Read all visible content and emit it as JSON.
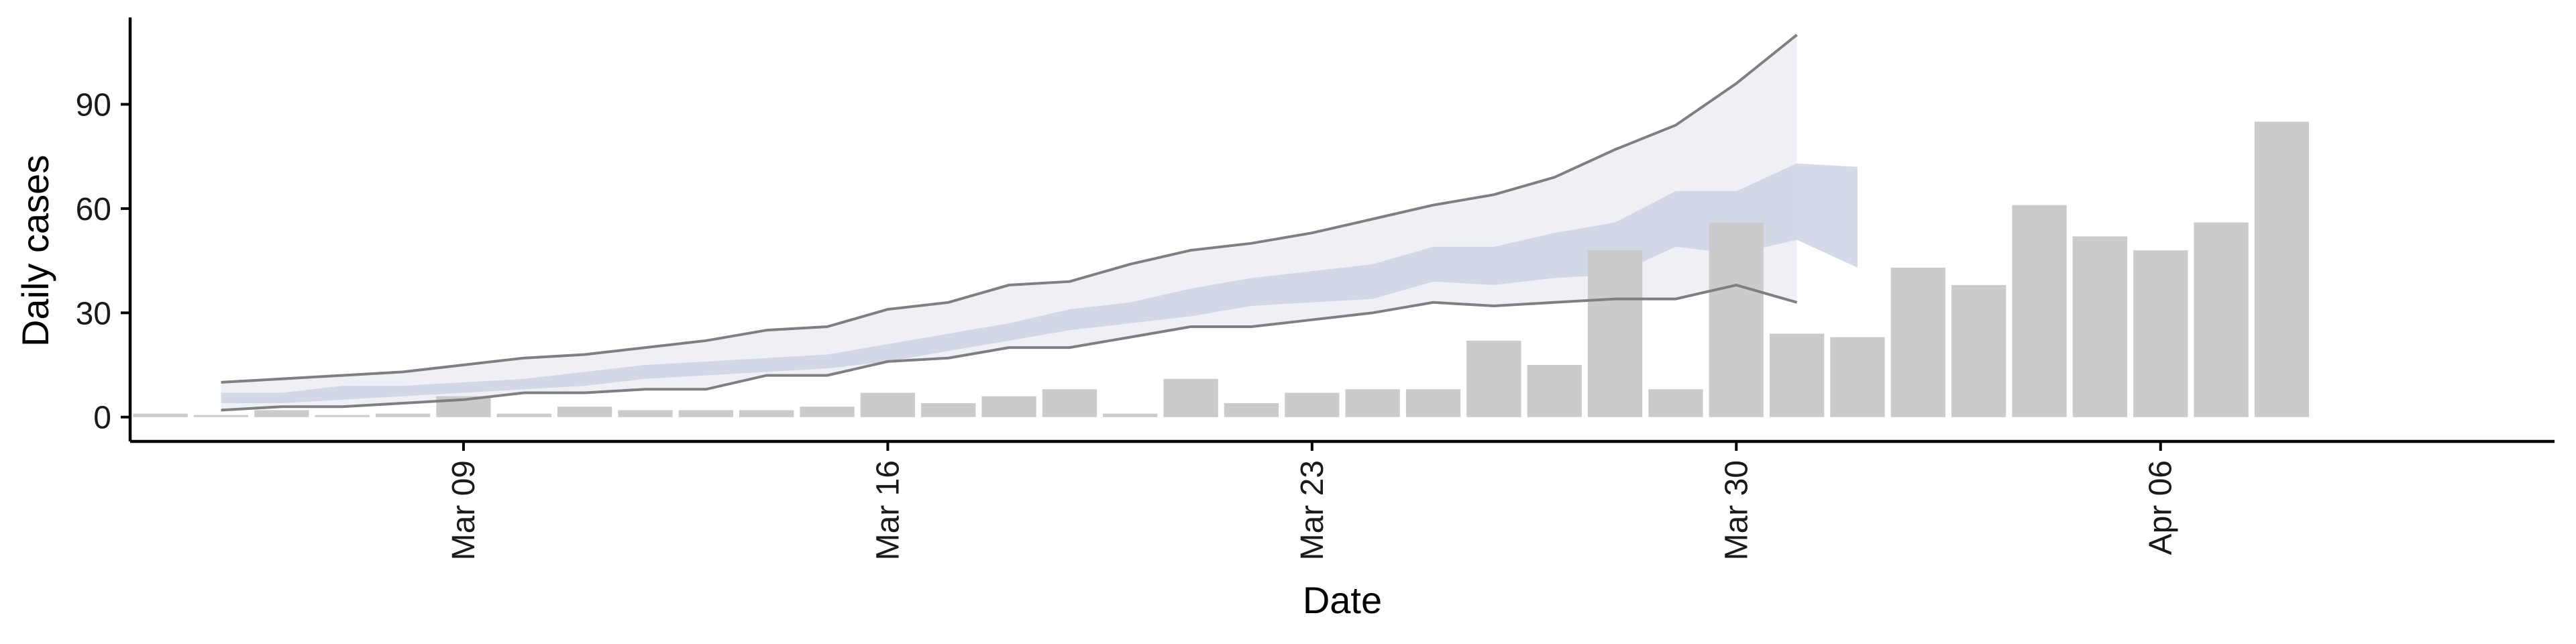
{
  "chart_data": {
    "type": "bar",
    "xlabel": "Date",
    "ylabel": "Daily cases",
    "ylim": [
      -7,
      115
    ],
    "y_ticks": [
      0,
      30,
      60,
      90
    ],
    "x_ticks": [
      {
        "label": "Mar 09",
        "date": "2020-03-09"
      },
      {
        "label": "Mar 16",
        "date": "2020-03-16"
      },
      {
        "label": "Mar 23",
        "date": "2020-03-23"
      },
      {
        "label": "Mar 30",
        "date": "2020-03-30"
      },
      {
        "label": "Apr 06",
        "date": "2020-04-06"
      }
    ],
    "xlim": [
      "2020-03-03T12:00",
      "2020-04-12T12:00"
    ],
    "grid": false,
    "legend": "none",
    "colors": {
      "bars": "#cbcbcb",
      "band_outer": "#eef0f5",
      "band_inner": "#cdd3e3",
      "line": "#7f7f7f"
    },
    "bars": {
      "dates": [
        "2020-03-04",
        "2020-03-05",
        "2020-03-06",
        "2020-03-07",
        "2020-03-08",
        "2020-03-09",
        "2020-03-10",
        "2020-03-11",
        "2020-03-12",
        "2020-03-13",
        "2020-03-14",
        "2020-03-15",
        "2020-03-16",
        "2020-03-17",
        "2020-03-18",
        "2020-03-19",
        "2020-03-20",
        "2020-03-21",
        "2020-03-22",
        "2020-03-23",
        "2020-03-24",
        "2020-03-25",
        "2020-03-26",
        "2020-03-27",
        "2020-03-28",
        "2020-03-29",
        "2020-03-30",
        "2020-03-31",
        "2020-04-01",
        "2020-04-02",
        "2020-04-03",
        "2020-04-04",
        "2020-04-05",
        "2020-04-06",
        "2020-04-07",
        "2020-04-08",
        "2020-04-09",
        "2020-04-10",
        "2020-04-11",
        "2020-04-12"
      ],
      "values": [
        1,
        0,
        2,
        0,
        1,
        6,
        1,
        3,
        2,
        2,
        2,
        3,
        7,
        4,
        6,
        8,
        1,
        11,
        4,
        7,
        8,
        8,
        22,
        15,
        48,
        8,
        56,
        24,
        23,
        43,
        38,
        61,
        52,
        48,
        56,
        85,
        null,
        null,
        null,
        null
      ]
    },
    "nowcast": {
      "dates": [
        "2020-03-05",
        "2020-03-06",
        "2020-03-07",
        "2020-03-08",
        "2020-03-09",
        "2020-03-10",
        "2020-03-11",
        "2020-03-12",
        "2020-03-13",
        "2020-03-14",
        "2020-03-15",
        "2020-03-16",
        "2020-03-17",
        "2020-03-18",
        "2020-03-19",
        "2020-03-20",
        "2020-03-21",
        "2020-03-22",
        "2020-03-23",
        "2020-03-24",
        "2020-03-25",
        "2020-03-26",
        "2020-03-27",
        "2020-03-28",
        "2020-03-29",
        "2020-03-30",
        "2020-03-31",
        "2020-04-01"
      ],
      "upper": [
        10,
        11,
        12,
        13,
        15,
        17,
        18,
        20,
        22,
        25,
        26,
        31,
        33,
        38,
        39,
        44,
        48,
        50,
        53,
        57,
        61,
        64,
        69,
        77,
        84,
        96,
        110,
        null
      ],
      "lower": [
        2,
        3,
        3,
        4,
        5,
        7,
        7,
        8,
        8,
        12,
        12,
        16,
        17,
        20,
        20,
        23,
        26,
        26,
        28,
        30,
        33,
        32,
        33,
        34,
        34,
        38,
        33,
        null
      ],
      "inner_upper": [
        7,
        7,
        9,
        9,
        10,
        11,
        13,
        15,
        16,
        17,
        18,
        21,
        24,
        27,
        31,
        33,
        37,
        40,
        42,
        44,
        49,
        49,
        53,
        56,
        65,
        65,
        73,
        72
      ],
      "inner_lower": [
        4,
        4,
        5,
        6,
        7,
        8,
        9,
        11,
        12,
        13,
        14,
        16,
        19,
        22,
        25,
        27,
        29,
        32,
        33,
        34,
        39,
        38,
        40,
        41,
        49,
        47,
        51,
        43
      ]
    }
  }
}
